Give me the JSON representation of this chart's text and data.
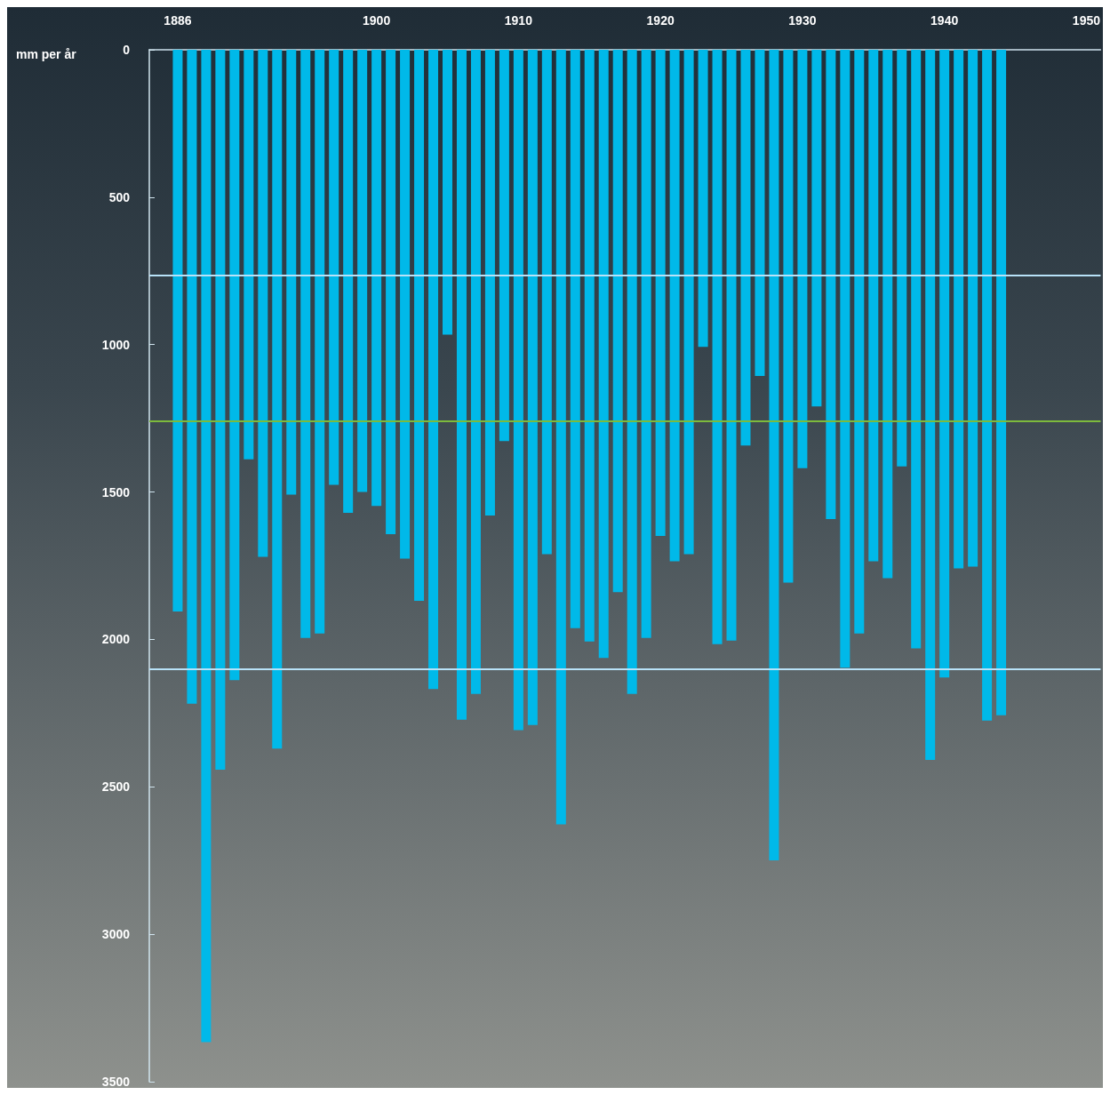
{
  "chart_data": {
    "type": "bar",
    "ylabel": "mm per år",
    "x": [
      1886,
      1887,
      1888,
      1889,
      1890,
      1891,
      1892,
      1893,
      1894,
      1895,
      1896,
      1897,
      1898,
      1899,
      1900,
      1901,
      1902,
      1903,
      1904,
      1905,
      1906,
      1907,
      1908,
      1909,
      1910,
      1911,
      1912,
      1913,
      1914,
      1915,
      1916,
      1917,
      1918,
      1919,
      1920,
      1921,
      1922,
      1923,
      1924,
      1925,
      1926,
      1927,
      1928,
      1929,
      1930,
      1931,
      1932,
      1933,
      1934,
      1935,
      1936,
      1937,
      1938,
      1939,
      1940,
      1941,
      1942,
      1943,
      1944
    ],
    "values": [
      1905,
      2218,
      3366,
      2442,
      2138,
      1389,
      1720,
      2370,
      1509,
      1995,
      1980,
      1476,
      1571,
      1500,
      1547,
      1643,
      1726,
      1869,
      2168,
      966,
      2272,
      2185,
      1580,
      1327,
      2308,
      2290,
      1711,
      2627,
      1962,
      2007,
      2063,
      1840,
      2185,
      1995,
      1649,
      1735,
      1711,
      1008,
      2016,
      2004,
      1342,
      1106,
      2749,
      1807,
      1419,
      1210,
      1592,
      2096,
      1980,
      1735,
      1792,
      1413,
      2030,
      2409,
      2129,
      1759,
      1753,
      2275,
      2257
    ],
    "color": "#00b9e9",
    "xlim": [
      1884,
      1951
    ],
    "xticks": [
      1886,
      1900,
      1910,
      1920,
      1930,
      1940,
      1950
    ],
    "ylim": [
      3500,
      0
    ],
    "yticks": [
      0,
      500,
      1000,
      1500,
      2000,
      2500,
      3000,
      3500
    ],
    "grid": false,
    "ref_lines": [
      {
        "axis": "y",
        "value": 765,
        "color": "#b8e2f8"
      },
      {
        "axis": "y",
        "value": 1260,
        "color": "#7dba3c"
      },
      {
        "axis": "y",
        "value": 2100,
        "color": "#b8e2f8"
      }
    ]
  }
}
